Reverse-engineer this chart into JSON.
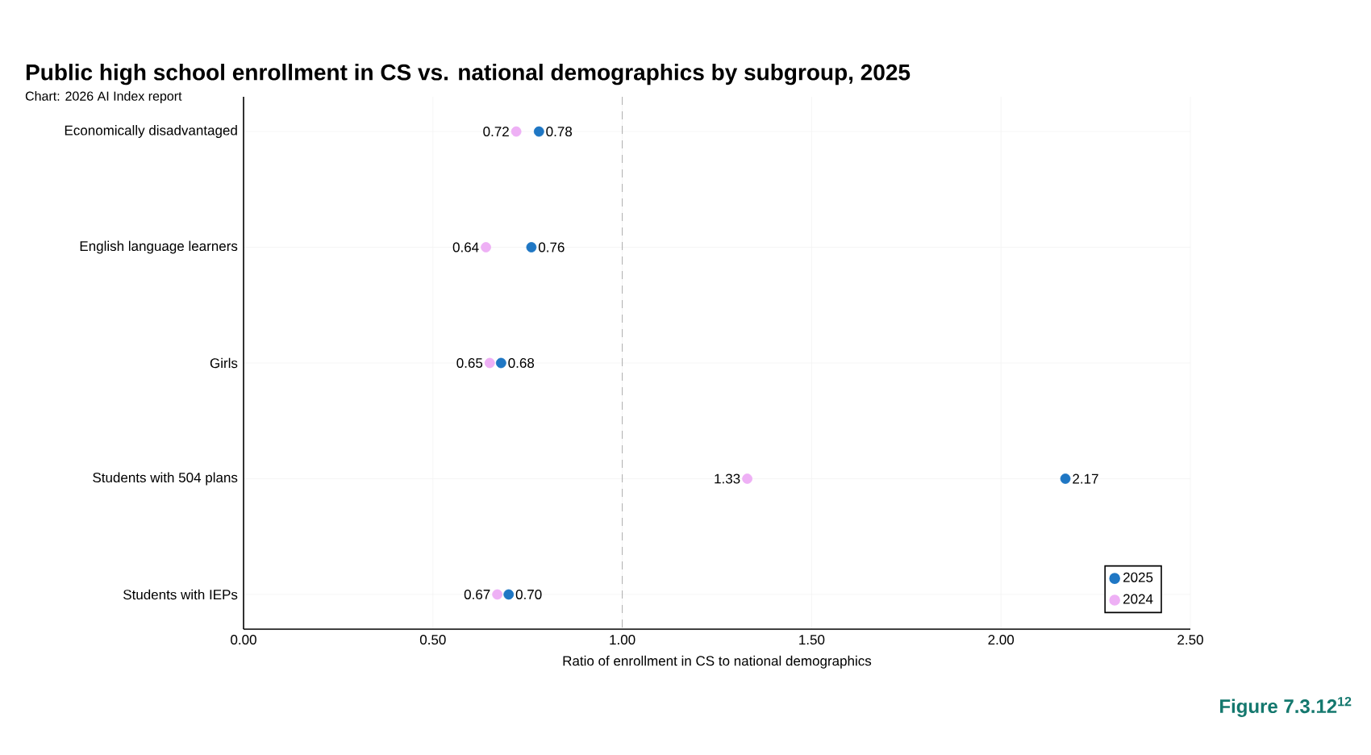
{
  "chart_data": {
    "type": "scatter",
    "title": "Public high school enrollment in CS vs. national demographics by subgroup, 2025",
    "subtitle": "Chart: 2026 AI Index report",
    "xlabel": "Ratio of enrollment in CS to national demographics",
    "orientation": "horizontal",
    "categories": [
      "Economically disadvantaged",
      "English language learners",
      "Girls",
      "Students with 504 plans",
      "Students with IEPs"
    ],
    "series": [
      {
        "name": "2025",
        "color": "#1f77c4",
        "values": [
          0.78,
          0.76,
          0.68,
          2.17,
          0.7
        ],
        "value_labels": [
          "0.78",
          "0.76",
          "0.68",
          "2.17",
          "0.70"
        ]
      },
      {
        "name": "2024",
        "color": "#eeb0f5",
        "values": [
          0.72,
          0.64,
          0.65,
          1.33,
          0.67
        ],
        "value_labels": [
          "0.72",
          "0.64",
          "0.65",
          "1.33",
          "0.67"
        ]
      }
    ],
    "xlim": [
      0,
      2.5
    ],
    "xticks": [
      {
        "value": 0,
        "label": "0.00"
      },
      {
        "value": 0.5,
        "label": "0.50"
      },
      {
        "value": 1,
        "label": "1.00"
      },
      {
        "value": 1.5,
        "label": "1.50"
      },
      {
        "value": 2,
        "label": "2.00"
      },
      {
        "value": 2.5,
        "label": "2.50"
      }
    ],
    "ref_lines": [
      {
        "axis": "x",
        "value": 1,
        "color": "#999999",
        "line_style": "dashed"
      }
    ],
    "grid": true,
    "legend": "bottom right",
    "marker": "circle",
    "annotations": [
      "Figure 7.3.12$^{12}$"
    ]
  }
}
